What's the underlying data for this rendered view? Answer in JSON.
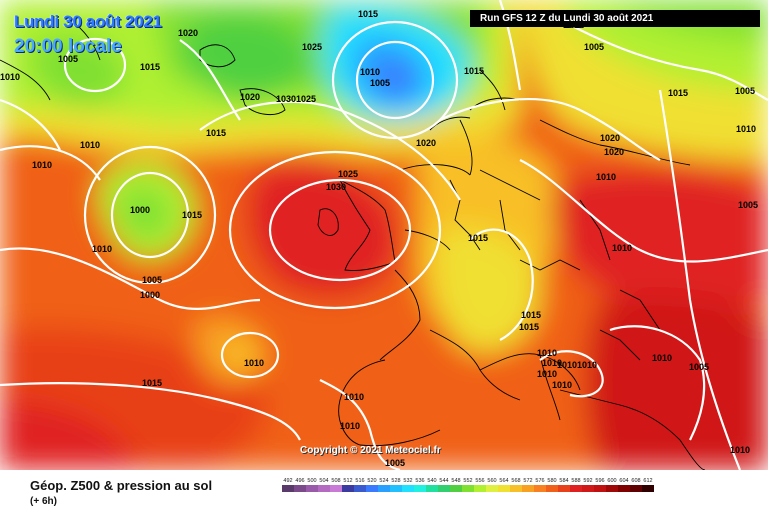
{
  "header": {
    "date": "Lundi 30 août 2021",
    "local_time": "20:00 locale",
    "run_info": "Run GFS 12 Z du Lundi 30 août 2021"
  },
  "copyright": "Copyright © 2021 Meteociel.fr",
  "footer": {
    "title": "Géop. Z500 & pression au sol",
    "subtitle": "(+ 6h)"
  },
  "scale": {
    "ticks": [
      "492",
      "496",
      "500",
      "504",
      "508",
      "512",
      "516",
      "520",
      "524",
      "528",
      "532",
      "536",
      "540",
      "544",
      "548",
      "552",
      "556",
      "560",
      "564",
      "568",
      "572",
      "576",
      "580",
      "584",
      "588",
      "592",
      "596",
      "600",
      "604",
      "608",
      "612"
    ],
    "colors": [
      "#5a3a6a",
      "#7a4a8a",
      "#9a5aaa",
      "#b46ac0",
      "#c87ad6",
      "#3a3aa0",
      "#3a5ad0",
      "#3a7aff",
      "#28a0ff",
      "#20c0ff",
      "#20e0ff",
      "#20f0e0",
      "#20e0a0",
      "#30d070",
      "#50d040",
      "#80e030",
      "#b0f030",
      "#e0f040",
      "#f0e030",
      "#f8c028",
      "#f8a020",
      "#f88020",
      "#f06018",
      "#e84018",
      "#e02020",
      "#d01818",
      "#c01010",
      "#a00808",
      "#800000",
      "#600000",
      "#300000"
    ]
  },
  "isobars": {
    "labels": [
      "1005",
      "1015",
      "1020",
      "1010",
      "1015",
      "1010",
      "1025",
      "1020",
      "1010",
      "1005",
      "1015",
      "1005",
      "1020",
      "1030",
      "1025",
      "1015",
      "1020",
      "1010",
      "1010",
      "1015",
      "1000",
      "1005",
      "1015",
      "1000",
      "1005",
      "1010",
      "1025",
      "1030",
      "1020",
      "1020",
      "1010",
      "1015",
      "1010",
      "1015",
      "1015",
      "1010",
      "1010",
      "1010",
      "1010",
      "1010",
      "1015",
      "1010",
      "1010",
      "1010",
      "1010",
      "1005",
      "1005",
      "1010",
      "1005",
      "1010",
      "1005",
      "1010"
    ]
  },
  "colors": {
    "isobar": "#ffffff",
    "coast": "#000000",
    "run_box": "#000000"
  }
}
